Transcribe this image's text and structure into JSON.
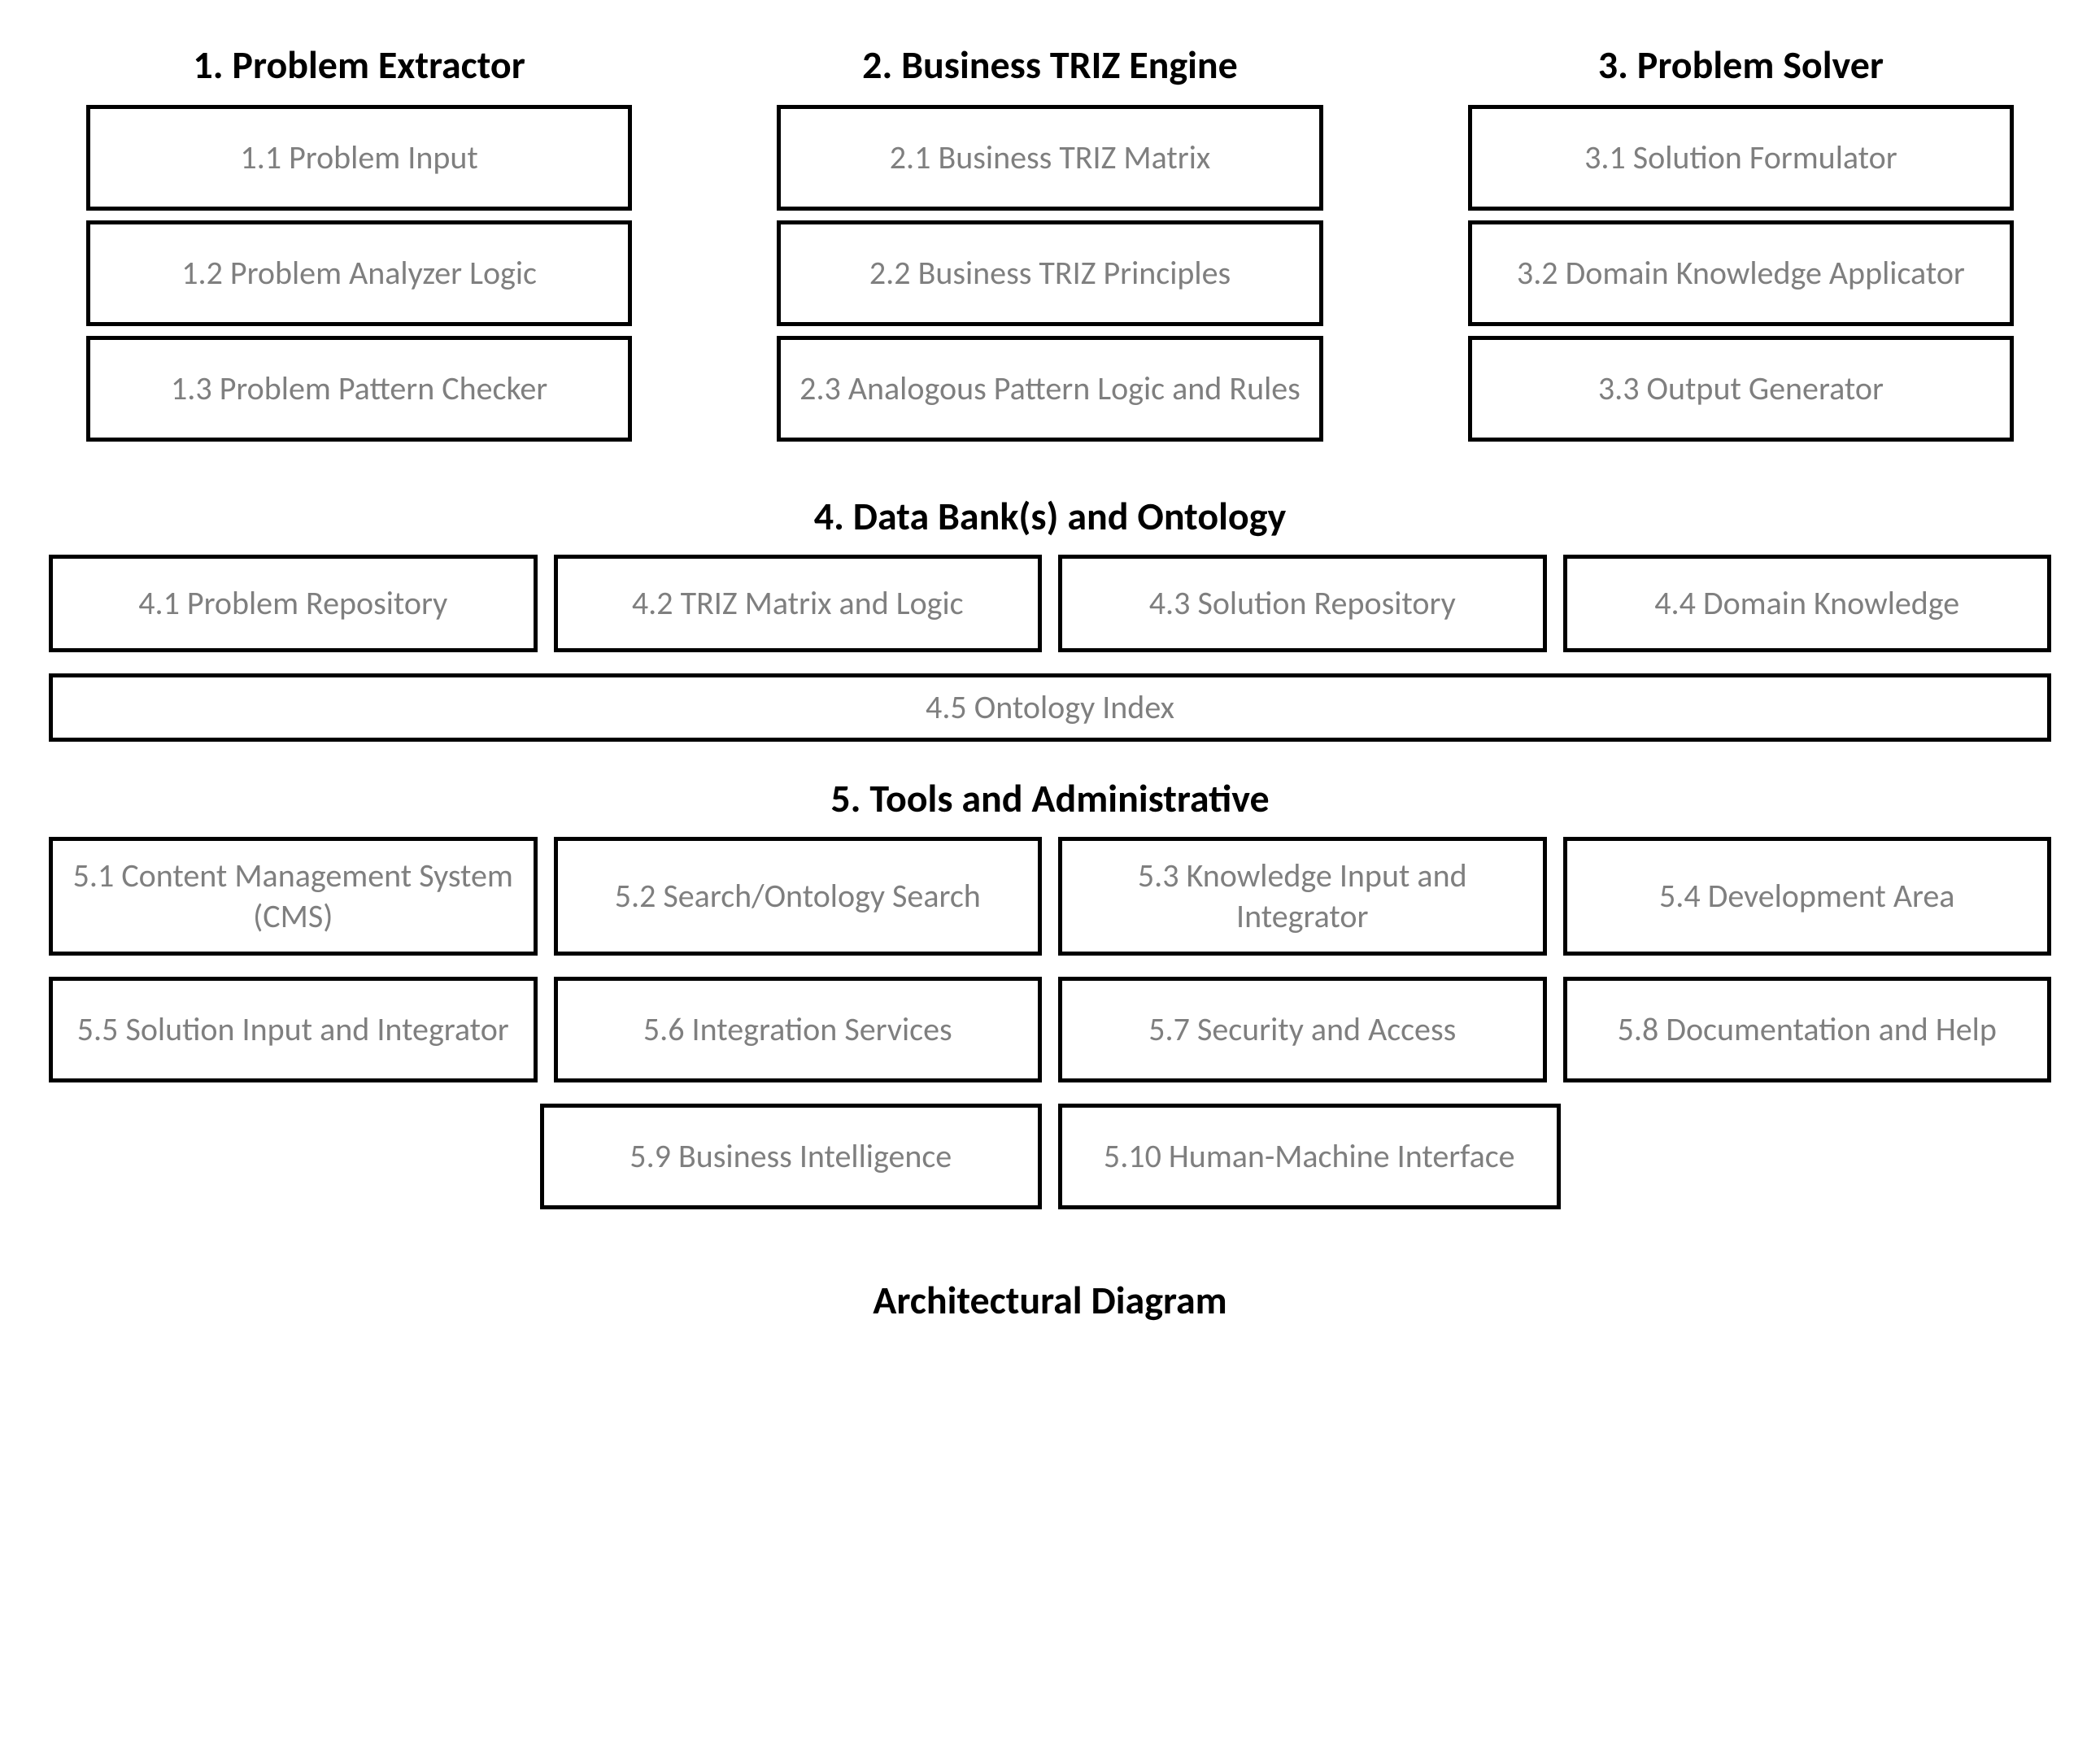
{
  "caption": "Architectural Diagram",
  "style": {
    "background_color": "#ffffff",
    "box_border_color": "#000000",
    "box_border_width": 5,
    "box_text_color": "#7f7f7f",
    "title_text_color": "#000000",
    "title_fontsize": 48,
    "box_fontsize": 40,
    "font_family": "Calibri"
  },
  "sections": {
    "s1": {
      "title": "1. Problem Extractor",
      "boxes": [
        "1.1 Problem Input",
        "1.2 Problem Analyzer Logic",
        "1.3 Problem Pattern Checker"
      ]
    },
    "s2": {
      "title": "2. Business TRIZ Engine",
      "boxes": [
        "2.1 Business TRIZ Matrix",
        "2.2 Business TRIZ Principles",
        "2.3 Analogous Pattern Logic  and Rules"
      ]
    },
    "s3": {
      "title": "3. Problem Solver",
      "boxes": [
        "3.1 Solution Formulator",
        "3.2 Domain Knowledge Applicator",
        "3.3 Output Generator"
      ]
    },
    "s4": {
      "title": "4. Data Bank(s) and Ontology",
      "row1": [
        "4.1 Problem Repository",
        "4.2 TRIZ Matrix and Logic",
        "4.3 Solution Repository",
        "4.4 Domain Knowledge"
      ],
      "full": "4.5 Ontology Index"
    },
    "s5": {
      "title": "5. Tools and Administrative",
      "row1": [
        "5.1 Content Management System (CMS)",
        "5.2 Search/Ontology Search",
        "5.3 Knowledge Input and Integrator",
        "5.4 Development  Area"
      ],
      "row2": [
        "5.5 Solution  Input and Integrator",
        "5.6 Integration Services",
        "5.7 Security and Access",
        "5.8 Documentation and Help"
      ],
      "row3": [
        "5.9 Business Intelligence",
        "5.10 Human-Machine Interface"
      ]
    }
  }
}
